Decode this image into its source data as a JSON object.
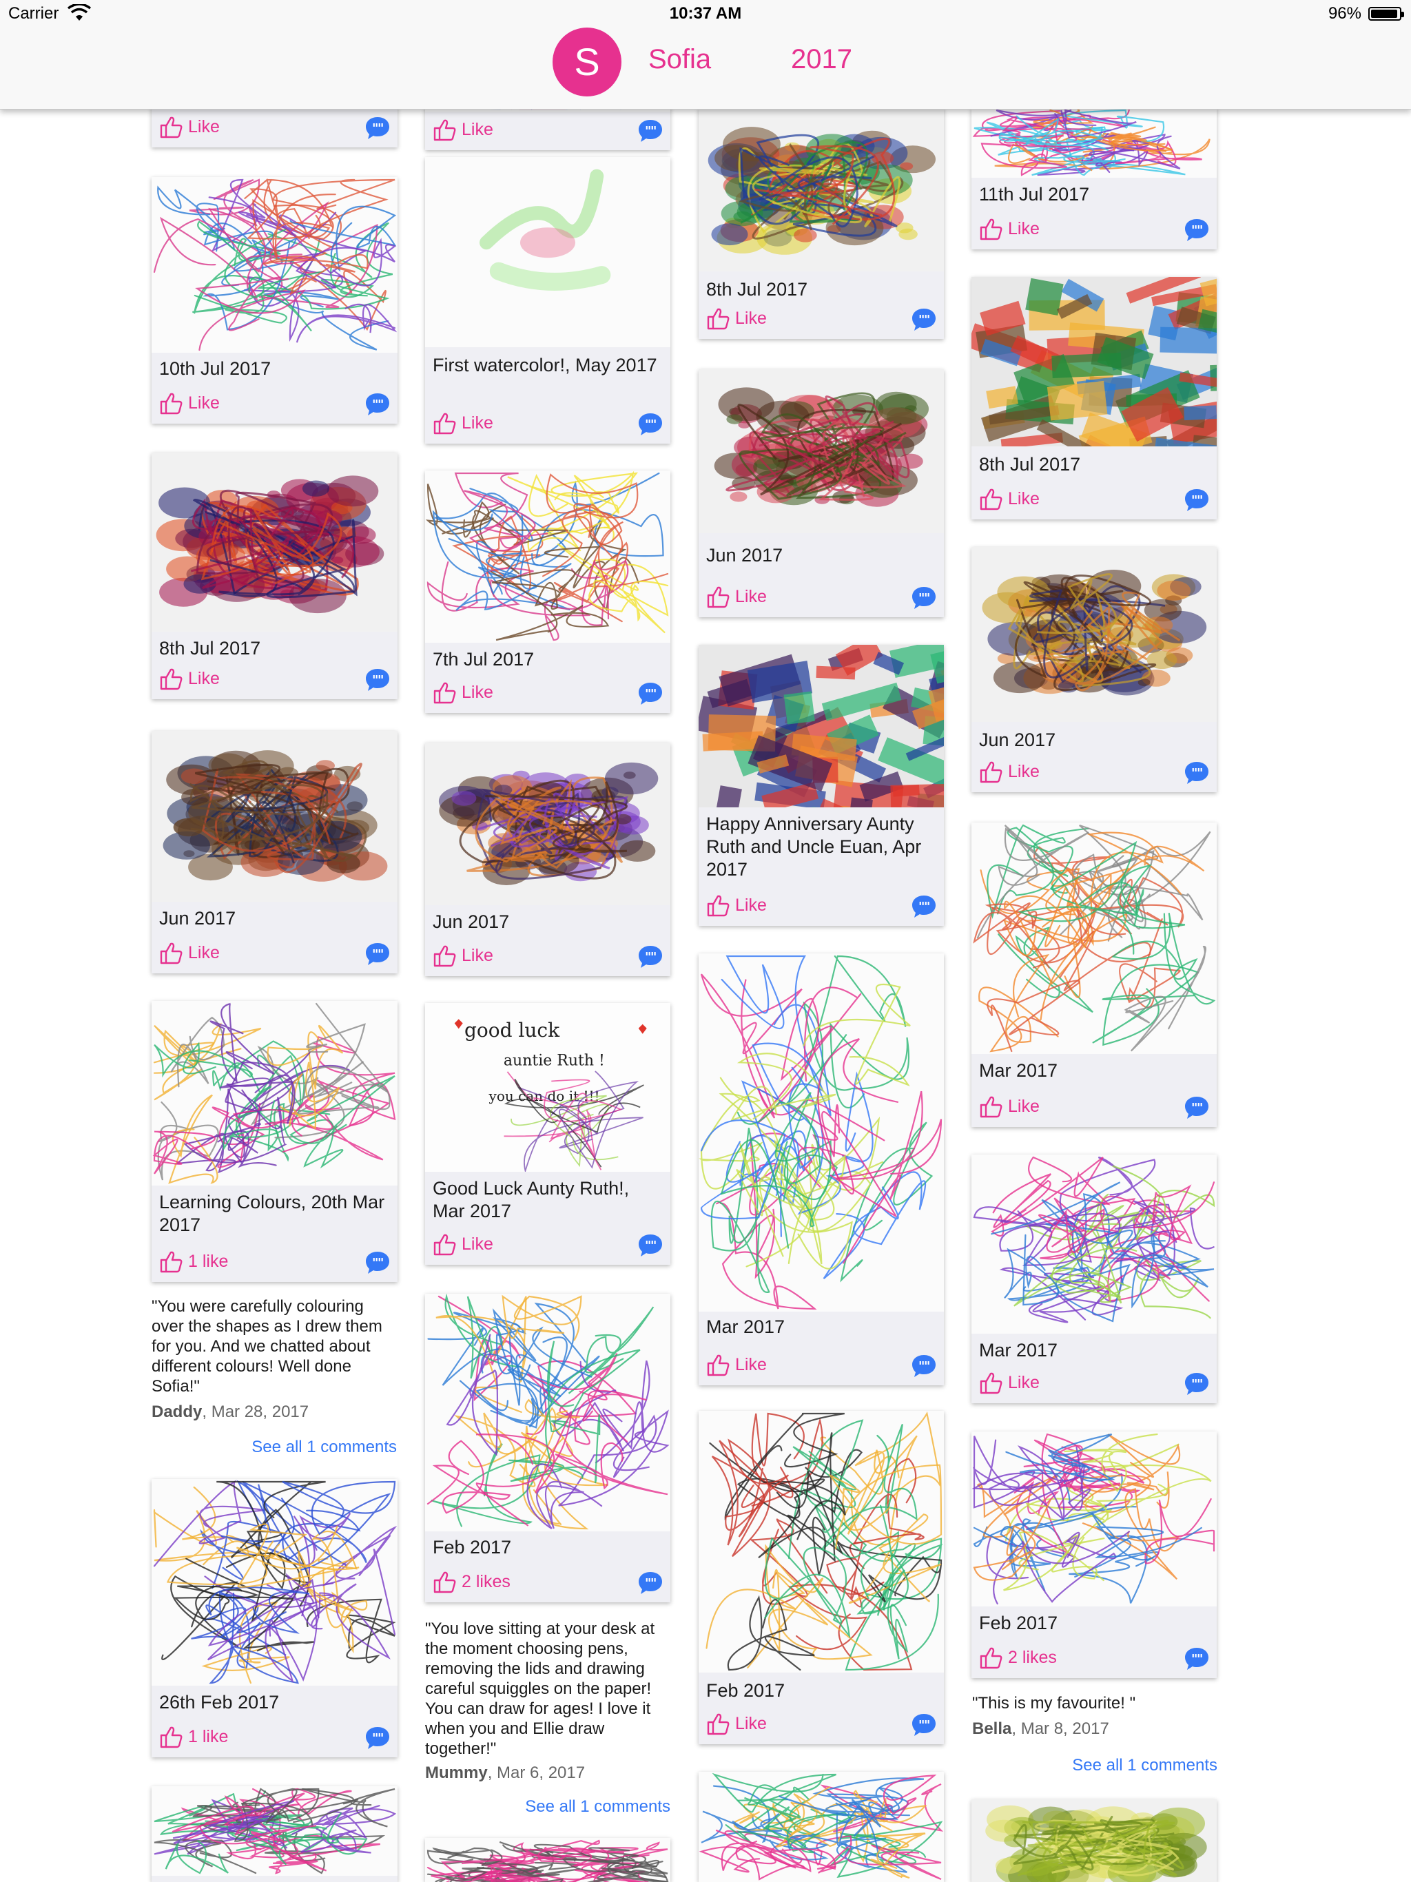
{
  "status_bar": {
    "carrier": "Carrier",
    "time": "10:37 AM",
    "battery": "96%",
    "battery_level": 0.96
  },
  "header": {
    "avatar_letter": "S",
    "name": "Sofia",
    "year": "2017"
  },
  "icons": {
    "like": "thumbs-up-icon",
    "comment": "quote-bubble-icon",
    "wifi": "wifi-icon",
    "battery": "battery-icon"
  },
  "colors": {
    "accent": "#e6318f",
    "link": "#3478f6",
    "comment_badge": "#3478f6"
  },
  "cards": [
    {
      "title": "",
      "like": "Like"
    },
    {
      "title": "10th Jul 2017",
      "like": "Like"
    },
    {
      "title": "8th Jul 2017",
      "like": "Like"
    },
    {
      "title": "Jun 2017",
      "like": "Like"
    },
    {
      "title": "Learning Colours, 20th Mar 2017",
      "like": "1 like"
    },
    {
      "title": "26th Feb 2017",
      "like": "1 like"
    },
    {
      "title": "",
      "like": ""
    },
    {
      "title": "",
      "like": "Like"
    },
    {
      "title": "First watercolor!, May 2017",
      "like": "Like"
    },
    {
      "title": "7th Jul 2017",
      "like": "Like"
    },
    {
      "title": "Jun 2017",
      "like": "Like"
    },
    {
      "title": "Good Luck Aunty Ruth!, Mar 2017",
      "like": "Like"
    },
    {
      "title": "Feb 2017",
      "like": "2 likes"
    },
    {
      "title": "",
      "like": ""
    },
    {
      "title": "8th Jul 2017",
      "like": "Like"
    },
    {
      "title": "Jun 2017",
      "like": "Like"
    },
    {
      "title": "Happy Anniversary Aunty Ruth and Uncle Euan, Apr 2017",
      "like": "Like"
    },
    {
      "title": "Mar 2017",
      "like": "Like"
    },
    {
      "title": "Feb 2017",
      "like": "Like"
    },
    {
      "title": "",
      "like": ""
    },
    {
      "title": "11th Jul 2017",
      "like": "Like"
    },
    {
      "title": "8th Jul 2017",
      "like": "Like"
    },
    {
      "title": "Jun 2017",
      "like": "Like"
    },
    {
      "title": "Mar 2017",
      "like": "Like"
    },
    {
      "title": "Mar 2017",
      "like": "Like"
    },
    {
      "title": "Feb 2017",
      "like": "2 likes"
    },
    {
      "title": "",
      "like": ""
    }
  ],
  "artwork_text": {
    "line1": "good luck",
    "line2": "auntie Ruth !",
    "line3": "you can do it !!!"
  },
  "comments": [
    {
      "text": "\"You were carefully colouring over the shapes as I drew them for you. And we chatted about different colours! Well done Sofia!\"",
      "author": "Daddy",
      "date": ", Mar 28, 2017",
      "see_all": "See all 1 comments"
    },
    {
      "text": "\"You love sitting at your desk at the moment choosing pens, removing the lids and drawing careful squiggles on the paper! You can draw for ages! I love it when you and Ellie draw together!\"",
      "author": "Mummy",
      "date": ", Mar 6, 2017",
      "see_all": "See all 1 comments"
    },
    {
      "text": "\"This is my favourite! \"",
      "author": "Bella",
      "date": ", Mar 8, 2017",
      "see_all": "See all 1 comments"
    }
  ]
}
